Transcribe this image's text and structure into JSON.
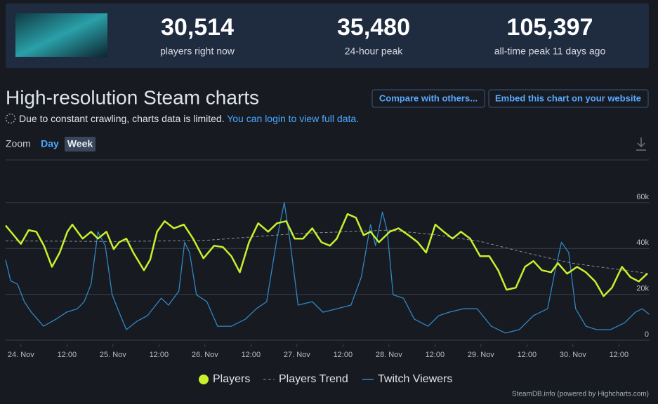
{
  "header": {
    "stats": [
      {
        "value": "30,514",
        "label": "players right now"
      },
      {
        "value": "35,480",
        "label": "24-hour peak"
      },
      {
        "value": "105,397",
        "label": "all-time peak 11 days ago"
      }
    ]
  },
  "title": "High-resolution Steam charts",
  "buttons": [
    "Compare with others...",
    "Embed this chart on your website"
  ],
  "notice": {
    "text": "Due to constant crawling, charts data is limited.",
    "link": "You can login to view full data."
  },
  "zoom": {
    "label": "Zoom",
    "options": [
      "Day",
      "Week"
    ],
    "selected": 1
  },
  "chart_data": {
    "type": "line",
    "xlim": [
      -4,
      164
    ],
    "xticks": [
      {
        "value": 0,
        "label": "24. Nov"
      },
      {
        "value": 12,
        "label": "12:00"
      },
      {
        "value": 24,
        "label": "25. Nov"
      },
      {
        "value": 36,
        "label": "12:00"
      },
      {
        "value": 48,
        "label": "26. Nov"
      },
      {
        "value": 60,
        "label": "12:00"
      },
      {
        "value": 72,
        "label": "27. Nov"
      },
      {
        "value": 84,
        "label": "12:00"
      },
      {
        "value": 96,
        "label": "28. Nov"
      },
      {
        "value": 108,
        "label": "12:00"
      },
      {
        "value": 120,
        "label": "29. Nov"
      },
      {
        "value": 132,
        "label": "12:00"
      },
      {
        "value": 144,
        "label": "30. Nov"
      },
      {
        "value": 156,
        "label": "12:00"
      }
    ],
    "ylim": [
      0,
      78000
    ],
    "yticks": [
      0,
      {
        "value": 20000,
        "label": "20k"
      },
      {
        "value": 40000,
        "label": "40k"
      },
      {
        "value": 60000,
        "label": "60k"
      }
    ],
    "grid": true,
    "series": [
      {
        "name": "Players",
        "color": "#c9f02c",
        "style": "solid",
        "x": [
          -4,
          0,
          2,
          4,
          6,
          8.1,
          10.1,
          12.1,
          13.4,
          16.1,
          18.3,
          20.1,
          22.3,
          24.2,
          25.6,
          27.5,
          29.3,
          32.1,
          33.7,
          35.5,
          37.5,
          39.9,
          42.5,
          44.9,
          47.6,
          50.4,
          52.7,
          54.9,
          57.1,
          59.5,
          61.9,
          64.5,
          66.8,
          69.2,
          71.4,
          73.6,
          76,
          78.4,
          80.6,
          82.4,
          85.2,
          87.4,
          89.4,
          91.2,
          93.4,
          96.2,
          98.5,
          101.1,
          103.5,
          105.7,
          108.1,
          110.3,
          112.6,
          114.8,
          117.2,
          119.8,
          122.2,
          124.5,
          126.7,
          129.1,
          131.5,
          133.7,
          135.9,
          138.3,
          140.1,
          142.5,
          145.1,
          147.4,
          149.8,
          152,
          154.2,
          156.8,
          159,
          161.2,
          163.4
        ],
        "values": [
          50000,
          42000,
          48000,
          47300,
          41200,
          32000,
          38200,
          47300,
          50400,
          44300,
          47300,
          44300,
          47300,
          39700,
          42700,
          44300,
          38200,
          30500,
          35100,
          47300,
          51900,
          48800,
          50400,
          44300,
          35700,
          41200,
          40600,
          36600,
          29600,
          42700,
          51000,
          47300,
          51000,
          51900,
          44300,
          44300,
          48800,
          42700,
          41200,
          44300,
          55000,
          53400,
          45800,
          47300,
          42700,
          47300,
          48800,
          45800,
          42700,
          38200,
          50400,
          47300,
          44300,
          47300,
          44300,
          36600,
          36600,
          30500,
          22000,
          22900,
          32000,
          34500,
          30500,
          29600,
          33600,
          29000,
          32000,
          29600,
          25600,
          19200,
          22900,
          32000,
          27500,
          25600,
          29000
        ]
      },
      {
        "name": "Players Trend",
        "color": "#8a8f98",
        "style": "dashed",
        "x": [
          -4,
          24,
          48,
          72,
          96,
          108,
          120,
          132,
          144,
          164
        ],
        "values": [
          43300,
          43000,
          43500,
          46500,
          48000,
          46000,
          43000,
          38000,
          33500,
          29000
        ]
      },
      {
        "name": "Twitch Viewers",
        "color": "#2f87c4",
        "style": "solid",
        "x": [
          -4,
          -2.7,
          -0.9,
          0.9,
          2.7,
          5.9,
          9.2,
          11.9,
          14.7,
          16.5,
          18.3,
          20.1,
          22,
          23.8,
          25.6,
          27.5,
          30.2,
          33,
          36.6,
          38.5,
          41.2,
          42.7,
          44,
          45.8,
          48.5,
          51.3,
          54.9,
          58.6,
          61.4,
          64.1,
          66.8,
          68.7,
          70.1,
          72.3,
          76,
          78.8,
          82.4,
          86.1,
          88.8,
          91.2,
          92.5,
          94.3,
          95.6,
          97.1,
          99.8,
          102.6,
          106.2,
          109,
          111.7,
          115.4,
          119,
          122.7,
          126.4,
          130,
          133.7,
          137.4,
          139.2,
          141,
          142.9,
          144.7,
          147.4,
          150.2,
          153.8,
          157.5,
          160.3,
          162.1,
          163.9
        ],
        "values": [
          35100,
          25900,
          24400,
          16800,
          12200,
          6100,
          9200,
          12200,
          13700,
          16800,
          24400,
          47300,
          41200,
          19800,
          12200,
          4600,
          8200,
          10700,
          18300,
          15300,
          21400,
          42700,
          38200,
          19800,
          16800,
          6100,
          6100,
          9200,
          13700,
          16800,
          44300,
          60100,
          44300,
          15300,
          16800,
          12200,
          13700,
          15300,
          27500,
          50400,
          41200,
          55900,
          47300,
          19800,
          18300,
          9200,
          6100,
          10700,
          12200,
          13700,
          13700,
          6100,
          3100,
          4600,
          10700,
          13700,
          29000,
          42700,
          38200,
          13700,
          6100,
          4600,
          4600,
          7600,
          12200,
          13700,
          11300
        ]
      }
    ]
  },
  "credit": "SteamDB.info (powered by Highcharts.com)"
}
